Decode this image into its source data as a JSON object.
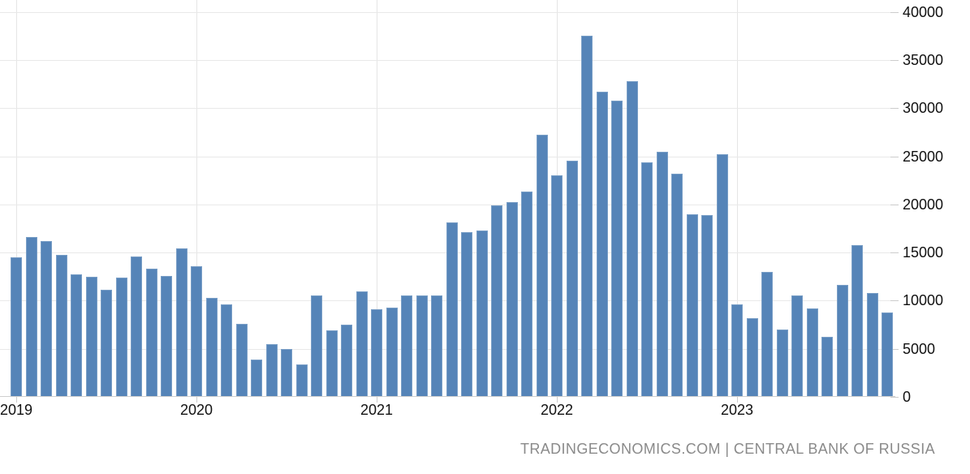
{
  "chart_data": {
    "type": "bar",
    "title": "",
    "xlabel": "",
    "ylabel": "",
    "ylim": [
      0,
      40000
    ],
    "yticks": [
      0,
      5000,
      10000,
      15000,
      20000,
      25000,
      30000,
      35000,
      40000
    ],
    "xtick_year_labels": [
      "2019",
      "2020",
      "2021",
      "2022",
      "2023"
    ],
    "grid": "on",
    "legend": "none",
    "bar_color": "#5584b8",
    "categories": [
      "2019-01",
      "2019-02",
      "2019-03",
      "2019-04",
      "2019-05",
      "2019-06",
      "2019-07",
      "2019-08",
      "2019-09",
      "2019-10",
      "2019-11",
      "2019-12",
      "2020-01",
      "2020-02",
      "2020-03",
      "2020-04",
      "2020-05",
      "2020-06",
      "2020-07",
      "2020-08",
      "2020-09",
      "2020-10",
      "2020-11",
      "2020-12",
      "2021-01",
      "2021-02",
      "2021-03",
      "2021-04",
      "2021-05",
      "2021-06",
      "2021-07",
      "2021-08",
      "2021-09",
      "2021-10",
      "2021-11",
      "2021-12",
      "2022-01",
      "2022-02",
      "2022-03",
      "2022-04",
      "2022-05",
      "2022-06",
      "2022-07",
      "2022-08",
      "2022-09",
      "2022-10",
      "2022-11",
      "2022-12",
      "2023-01",
      "2023-02",
      "2023-03",
      "2023-04",
      "2023-05",
      "2023-06",
      "2023-07",
      "2023-08",
      "2023-09",
      "2023-10",
      "2023-11"
    ],
    "values": [
      14500,
      16600,
      16200,
      14800,
      12700,
      12500,
      11100,
      12400,
      14600,
      13300,
      12600,
      15400,
      13600,
      10300,
      9600,
      7600,
      3900,
      5500,
      5000,
      3400,
      10500,
      6900,
      7500,
      11000,
      9100,
      9300,
      10500,
      10500,
      10500,
      18100,
      17100,
      17300,
      19900,
      20200,
      21300,
      27200,
      23000,
      24500,
      37500,
      31700,
      30800,
      32800,
      24400,
      25500,
      23200,
      19000,
      18900,
      25200,
      9600,
      8200,
      13000,
      7000,
      10500,
      9200,
      6200,
      11600,
      15800,
      10800,
      8800
    ]
  },
  "footer": {
    "text": "TRADINGECONOMICS.COM | CENTRAL BANK OF RUSSIA"
  },
  "colors": {
    "bar": "#5584b8",
    "gridline": "#e9e9e9",
    "axis_text": "#111111",
    "tick": "#cccccc",
    "source_text": "#8a8a8a",
    "background": "#ffffff"
  }
}
